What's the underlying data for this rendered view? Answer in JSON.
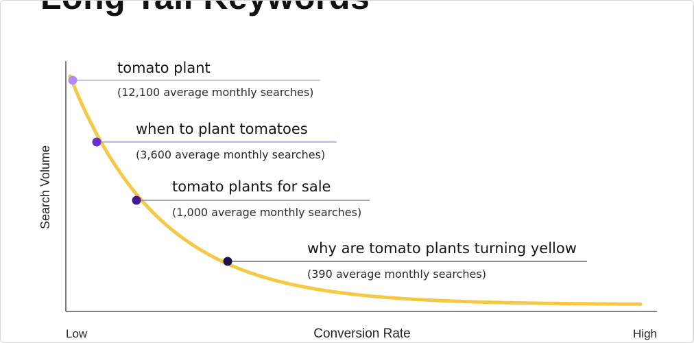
{
  "chart_data": {
    "type": "line",
    "title": "Long Tail Keywords",
    "xlabel": "Conversion Rate",
    "ylabel": "Search Volume",
    "x_tick_labels": [
      "Low",
      "High"
    ],
    "grid": false,
    "curve_color": "#f5c945",
    "axis_color": "#555555",
    "series": [
      {
        "points": [
          {
            "keyword": "tomato plant",
            "searches": 12100,
            "note": "(12,100 average monthly searches)",
            "color": "#b48bf2"
          },
          {
            "keyword": "when to plant tomatoes",
            "searches": 3600,
            "note": "(3,600 average monthly searches)",
            "color": "#6a2fd1"
          },
          {
            "keyword": "tomato plants for sale",
            "searches": 1000,
            "note": "(1,000 average monthly searches)",
            "color": "#3d1b8e"
          },
          {
            "keyword": "why are tomato plants turning yellow",
            "searches": 390,
            "note": "(390 average monthly searches)",
            "color": "#1f0f4a"
          }
        ]
      }
    ]
  }
}
